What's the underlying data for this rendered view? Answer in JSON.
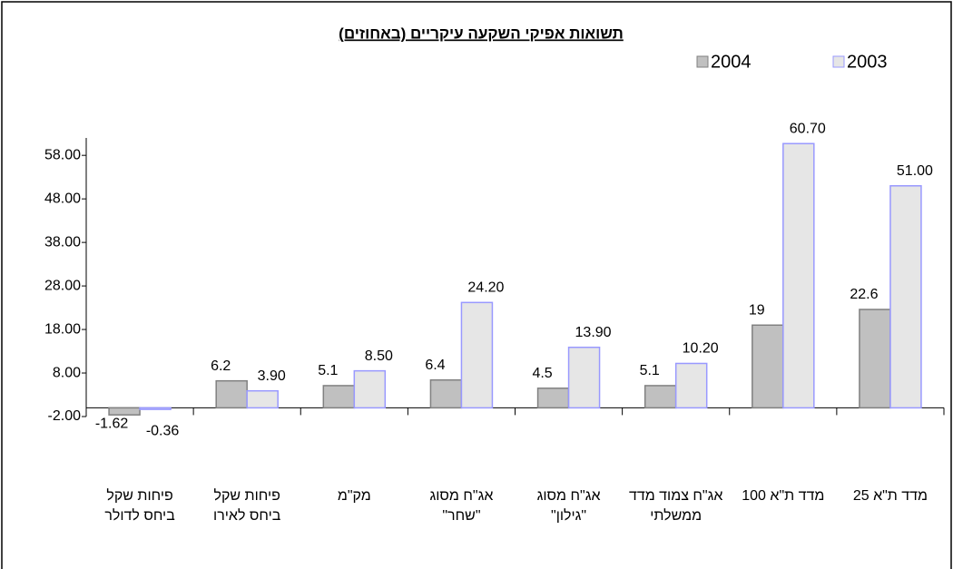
{
  "chart_data": {
    "type": "bar",
    "title": "תשואות אפיקי השקעה עיקריים (באחוזים)",
    "categories": [
      "פיחות שקל ביחס לדולר",
      "פיחות שקל ביחס לאירו",
      "מק\"מ",
      "אג\"ח מסוג \"שחר\"",
      "אג\"ח מסוג \"גילון\"",
      "אג\"ח צמוד מדד ממשלתי",
      "מדד ת\"א 100",
      "מדד ת\"א 25"
    ],
    "series": [
      {
        "name": "2004",
        "color": "#c0c0c0",
        "values": [
          -1.62,
          6.2,
          5.1,
          6.4,
          4.5,
          5.1,
          19,
          22.6
        ]
      },
      {
        "name": "2003",
        "color": "#e6e6e6",
        "values": [
          -0.36,
          3.9,
          8.5,
          24.2,
          13.9,
          10.2,
          60.7,
          51
        ],
        "value_labels": [
          "-0.36",
          "3.90",
          "8.50",
          "24.20",
          "13.90",
          "10.20",
          "60.70",
          "51.00"
        ]
      }
    ],
    "ylim": [
      -2,
      62
    ],
    "yticks": [
      {
        "value": -2,
        "label": "-2.00"
      },
      {
        "value": 8,
        "label": "8.00"
      },
      {
        "value": 18,
        "label": "18.00"
      },
      {
        "value": 28,
        "label": "28.00"
      },
      {
        "value": 38,
        "label": "38.00"
      },
      {
        "value": 48,
        "label": "48.00"
      },
      {
        "value": 58,
        "label": "58.00"
      }
    ],
    "legend": "top-right"
  }
}
